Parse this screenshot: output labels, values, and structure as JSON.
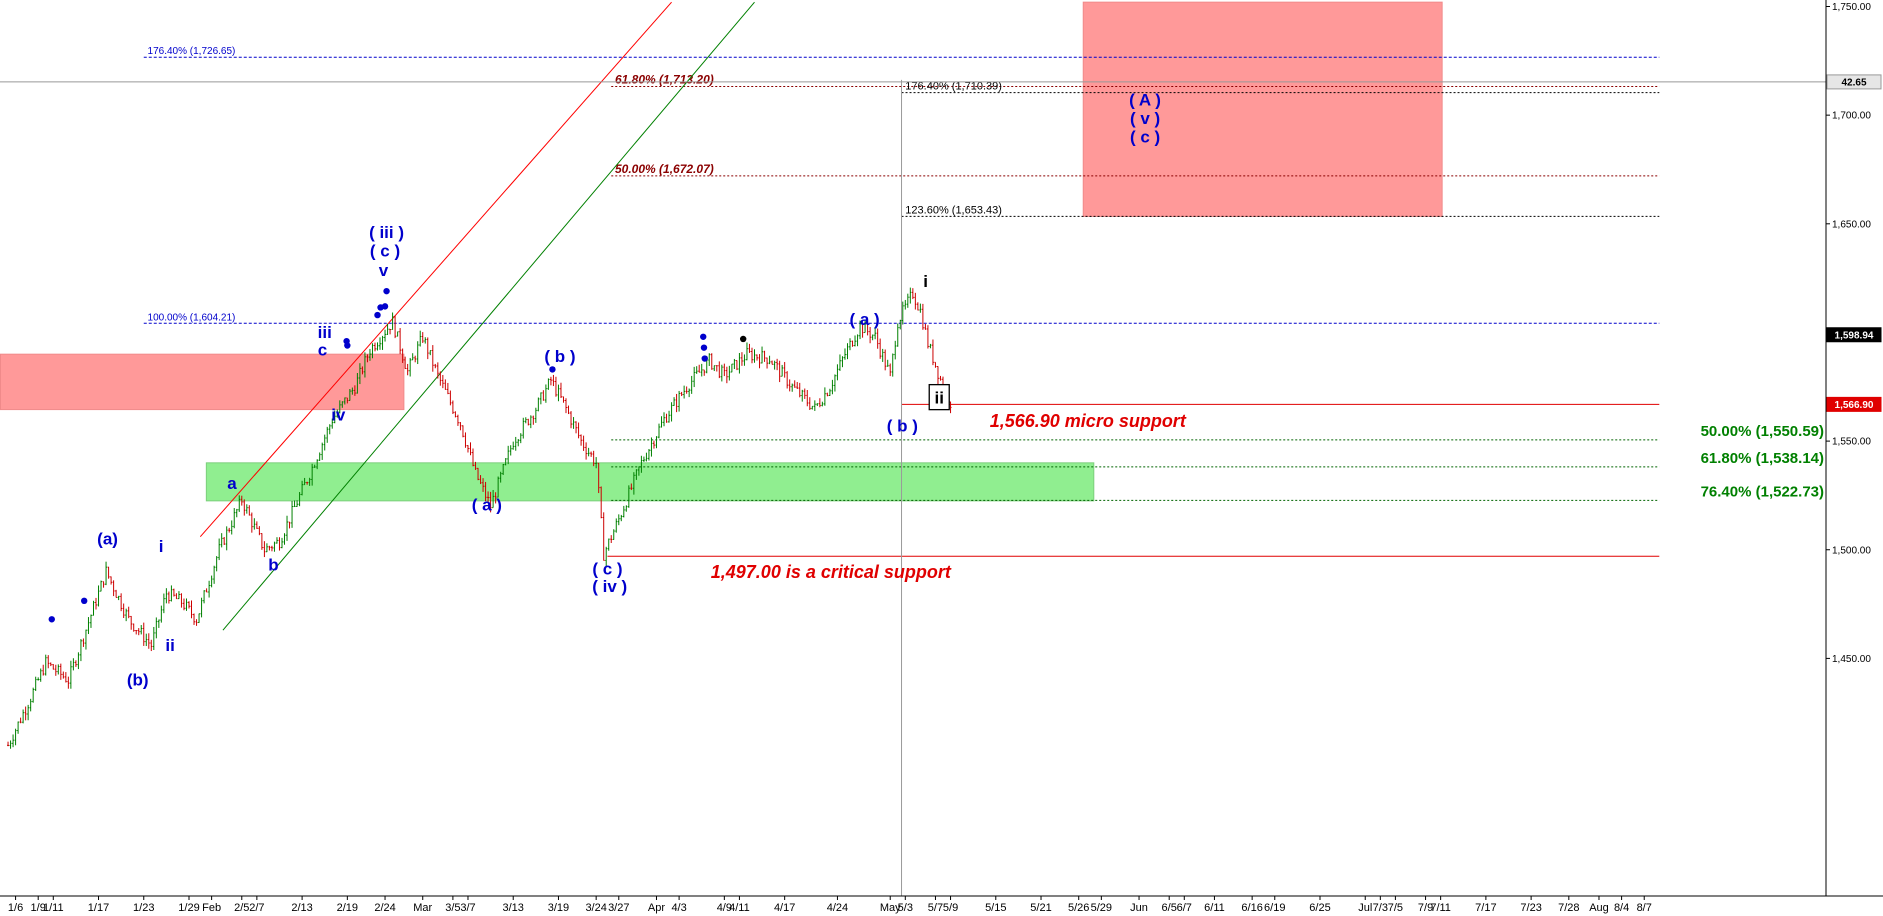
{
  "chart_data": {
    "type": "candlestick",
    "title": "",
    "xlabel": "",
    "ylabel": "",
    "ylim": [
      1407.5,
      1752
    ],
    "grid": false,
    "y_ticks": [
      1450,
      1500,
      1550,
      1600,
      1650,
      1700,
      1750
    ],
    "y_tick_labels": [
      "1,450.00",
      "1,500.00",
      "1,550.00",
      "1,600.00",
      "1,650.00",
      "1,700.00",
      "1,750.00"
    ],
    "x_tick_labels": [
      {
        "day": 2,
        "label": "1/6"
      },
      {
        "day": 5,
        "label": "1/9"
      },
      {
        "day": 7,
        "label": "1/11"
      },
      {
        "day": 13,
        "label": "1/17"
      },
      {
        "day": 19,
        "label": "1/23"
      },
      {
        "day": 25,
        "label": "1/29"
      },
      {
        "day": 28,
        "label": "Feb"
      },
      {
        "day": 32,
        "label": "2/5"
      },
      {
        "day": 34,
        "label": "2/7"
      },
      {
        "day": 40,
        "label": "2/13"
      },
      {
        "day": 46,
        "label": "2/19"
      },
      {
        "day": 51,
        "label": "2/24"
      },
      {
        "day": 56,
        "label": "Mar"
      },
      {
        "day": 60,
        "label": "3/5"
      },
      {
        "day": 62,
        "label": "3/7"
      },
      {
        "day": 68,
        "label": "3/13"
      },
      {
        "day": 74,
        "label": "3/19"
      },
      {
        "day": 79,
        "label": "3/24"
      },
      {
        "day": 82,
        "label": "3/27"
      },
      {
        "day": 87,
        "label": "Apr"
      },
      {
        "day": 90,
        "label": "4/3"
      },
      {
        "day": 96,
        "label": "4/9"
      },
      {
        "day": 98,
        "label": "4/11"
      },
      {
        "day": 104,
        "label": "4/17"
      },
      {
        "day": 111,
        "label": "4/24"
      },
      {
        "day": 118,
        "label": "May"
      },
      {
        "day": 120,
        "label": "5/3"
      },
      {
        "day": 124,
        "label": "5/7"
      },
      {
        "day": 126,
        "label": "5/9"
      },
      {
        "day": 132,
        "label": "5/15"
      },
      {
        "day": 138,
        "label": "5/21"
      },
      {
        "day": 143,
        "label": "5/26"
      },
      {
        "day": 146,
        "label": "5/29"
      },
      {
        "day": 151,
        "label": "Jun"
      },
      {
        "day": 155,
        "label": "6/5"
      },
      {
        "day": 157,
        "label": "6/7"
      },
      {
        "day": 161,
        "label": "6/11"
      },
      {
        "day": 166,
        "label": "6/16"
      },
      {
        "day": 169,
        "label": "6/19"
      },
      {
        "day": 175,
        "label": "6/25"
      },
      {
        "day": 181,
        "label": "Jul"
      },
      {
        "day": 183,
        "label": "7/3"
      },
      {
        "day": 185,
        "label": "7/5"
      },
      {
        "day": 189,
        "label": "7/9"
      },
      {
        "day": 191,
        "label": "7/11"
      },
      {
        "day": 197,
        "label": "7/17"
      },
      {
        "day": 203,
        "label": "7/23"
      },
      {
        "day": 208,
        "label": "7/28"
      },
      {
        "day": 212,
        "label": "Aug"
      },
      {
        "day": 215,
        "label": "8/4"
      },
      {
        "day": 218,
        "label": "8/7"
      }
    ],
    "price_path": [
      [
        1,
        1410
      ],
      [
        4,
        1432
      ],
      [
        6,
        1448
      ],
      [
        9,
        1440
      ],
      [
        12,
        1470
      ],
      [
        14,
        1490
      ],
      [
        17,
        1468
      ],
      [
        20,
        1456
      ],
      [
        22,
        1480
      ],
      [
        24,
        1476
      ],
      [
        26,
        1468
      ],
      [
        29,
        1500
      ],
      [
        32,
        1523
      ],
      [
        35,
        1500
      ],
      [
        37,
        1504
      ],
      [
        41,
        1535
      ],
      [
        44,
        1560
      ],
      [
        47,
        1575
      ],
      [
        49,
        1592
      ],
      [
        52,
        1605
      ],
      [
        54,
        1582
      ],
      [
        56,
        1598
      ],
      [
        58,
        1580
      ],
      [
        61,
        1558
      ],
      [
        63,
        1535
      ],
      [
        65,
        1520
      ],
      [
        68,
        1550
      ],
      [
        71,
        1565
      ],
      [
        73,
        1578
      ],
      [
        75,
        1565
      ],
      [
        77,
        1550
      ],
      [
        79,
        1540
      ],
      [
        80,
        1498
      ],
      [
        82,
        1514
      ],
      [
        85,
        1540
      ],
      [
        88,
        1560
      ],
      [
        91,
        1575
      ],
      [
        94,
        1587
      ],
      [
        96,
        1580
      ],
      [
        99,
        1590
      ],
      [
        102,
        1588
      ],
      [
        105,
        1575
      ],
      [
        108,
        1565
      ],
      [
        110,
        1575
      ],
      [
        112,
        1590
      ],
      [
        114,
        1603
      ],
      [
        116,
        1598
      ],
      [
        118,
        1580
      ],
      [
        119,
        1605
      ],
      [
        121,
        1618
      ],
      [
        122,
        1610
      ],
      [
        123,
        1595
      ],
      [
        124,
        1585
      ],
      [
        125,
        1575
      ],
      [
        126,
        1568
      ]
    ],
    "zones": [
      {
        "color": "#ff9999",
        "day_start": 0,
        "day_end": 53.5,
        "price_top": 1590,
        "price_bottom": 1564.5
      },
      {
        "color": "#90ee90",
        "day_start": 27.3,
        "day_end": 145,
        "price_top": 1540,
        "price_bottom": 1522.5
      },
      {
        "color": "#ff9999",
        "day_start": 143.6,
        "day_end": 191.2,
        "price_top": 1752,
        "price_bottom": 1653.4
      }
    ],
    "trend_lines": [
      {
        "color": "#ff0000",
        "from": [
          26.5,
          1506
        ],
        "to": [
          89,
          1752
        ]
      },
      {
        "color": "#008000",
        "from": [
          29.5,
          1463
        ],
        "to": [
          100,
          1752
        ]
      }
    ],
    "levels": [
      {
        "name": "level-176-40-top",
        "price": 1726.65,
        "label": "176.40% (1,726.65)",
        "color": "#0000cc",
        "style": "dash",
        "day_start": 19,
        "day_end": 220,
        "label_day": 19.5,
        "size": 10,
        "bold": false,
        "italic": false
      },
      {
        "name": "level-61-80-upper",
        "price": 1713.2,
        "label": "61.80% (1,713.20)",
        "color": "#8b0000",
        "style": "dot",
        "day_start": 81,
        "day_end": 220,
        "label_day": 81.5,
        "size": 12,
        "bold": true,
        "italic": true
      },
      {
        "name": "level-176-40-mid",
        "price": 1710.39,
        "label": "176.40% (1,710.39)",
        "color": "#000000",
        "style": "dot",
        "day_start": 119.5,
        "day_end": 220,
        "label_day": 120,
        "size": 11,
        "bold": false,
        "italic": false
      },
      {
        "name": "level-50-00-upper",
        "price": 1672.07,
        "label": "50.00% (1,672.07)",
        "color": "#8b0000",
        "style": "dot",
        "day_start": 81,
        "day_end": 220,
        "label_day": 81.5,
        "size": 12,
        "bold": true,
        "italic": true
      },
      {
        "name": "level-123-60",
        "price": 1653.43,
        "label": "123.60% (1,653.43)",
        "color": "#000000",
        "style": "dot",
        "day_start": 119.5,
        "day_end": 220,
        "label_day": 120,
        "size": 11,
        "bold": false,
        "italic": false
      },
      {
        "name": "level-100-00",
        "price": 1604.21,
        "label": "100.00% (1,604.21)",
        "color": "#0000cc",
        "style": "dash",
        "day_start": 19,
        "day_end": 220,
        "label_day": 19.5,
        "size": 10,
        "bold": false,
        "italic": false
      },
      {
        "name": "level-50-00-lower",
        "price": 1550.59,
        "label": "",
        "color": "#006400",
        "style": "dot",
        "day_start": 81,
        "day_end": 220,
        "label_day": 0,
        "size": 0,
        "bold": false,
        "italic": false
      },
      {
        "name": "level-61-80-lower",
        "price": 1538.14,
        "label": "",
        "color": "#006400",
        "style": "dot",
        "day_start": 81,
        "day_end": 220,
        "label_day": 0,
        "size": 0,
        "bold": false,
        "italic": false
      },
      {
        "name": "level-76-40",
        "price": 1522.73,
        "label": "",
        "color": "#006400",
        "style": "dot",
        "day_start": 81,
        "day_end": 220,
        "label_day": 0,
        "size": 0,
        "bold": false,
        "italic": false
      },
      {
        "name": "level-micro-support",
        "price": 1566.9,
        "label": "",
        "color": "#e00000",
        "style": "solid",
        "day_start": 119.5,
        "day_end": 220,
        "label_day": 0,
        "size": 0,
        "bold": false,
        "italic": false
      },
      {
        "name": "level-critical-support",
        "price": 1497,
        "label": "",
        "color": "#e00000",
        "style": "solid",
        "day_start": 80.5,
        "day_end": 220,
        "label_day": 0,
        "size": 0,
        "bold": false,
        "italic": false
      }
    ],
    "crosshair": {
      "day": 119.5,
      "price": 1715.3
    },
    "price_tags": [
      {
        "name": "price-tag-crosshair",
        "price": 1715.3,
        "label": "42.65",
        "bg": "#e6e6e6",
        "fg": "#000000"
      },
      {
        "name": "price-tag-last",
        "price": 1598.94,
        "label": "1,598.94",
        "bg": "#000000",
        "fg": "#ffffff"
      },
      {
        "name": "price-tag-support",
        "price": 1566.9,
        "label": "1,566.90",
        "bg": "#e00000",
        "fg": "#ffffff"
      }
    ],
    "support_labels": [
      {
        "name": "micro-support-label",
        "text": "1,566.90 micro support",
        "day": 131.2,
        "price": 1556.5
      },
      {
        "name": "critical-support-label",
        "text": "1,497.00 is a critical support",
        "day": 94.2,
        "price": 1487
      }
    ],
    "fib_right_labels": [
      {
        "name": "fib-50-00-label",
        "text": "50.00% (1,550.59)",
        "price": 1550.59
      },
      {
        "name": "fib-61-80-label",
        "text": "61.80% (1,538.14)",
        "price": 1538.14
      },
      {
        "name": "fib-76-40-label",
        "text": "76.40% (1,522.73)",
        "price": 1522.73
      }
    ],
    "wave_labels": [
      {
        "text": "(a)",
        "day": 14.2,
        "price": 1502.5,
        "color": "#0000cc"
      },
      {
        "text": "(b)",
        "day": 18.2,
        "price": 1437.5,
        "color": "#0000cc"
      },
      {
        "text": "i",
        "day": 21.3,
        "price": 1499,
        "color": "#0000cc"
      },
      {
        "text": "ii",
        "day": 22.5,
        "price": 1453.5,
        "color": "#0000cc"
      },
      {
        "text": "a",
        "day": 30.7,
        "price": 1528,
        "color": "#0000cc"
      },
      {
        "text": "b",
        "day": 36.2,
        "price": 1490.5,
        "color": "#0000cc"
      },
      {
        "text": "iii",
        "day": 43,
        "price": 1597.5,
        "color": "#0000cc"
      },
      {
        "text": "c",
        "day": 42.7,
        "price": 1589.5,
        "color": "#0000cc"
      },
      {
        "text": "iv",
        "day": 44.8,
        "price": 1559.5,
        "color": "#0000cc"
      },
      {
        "text": "( iii )",
        "day": 51.2,
        "price": 1643.5,
        "color": "#0000cc"
      },
      {
        "text": "( c )",
        "day": 51,
        "price": 1635,
        "color": "#0000cc"
      },
      {
        "text": "v",
        "day": 50.8,
        "price": 1626,
        "color": "#0000cc"
      },
      {
        "text": "( a )",
        "day": 64.5,
        "price": 1518,
        "color": "#0000cc"
      },
      {
        "text": "( b )",
        "day": 74.2,
        "price": 1586.5,
        "color": "#0000cc"
      },
      {
        "text": "( c )",
        "day": 80.5,
        "price": 1488.5,
        "color": "#0000cc"
      },
      {
        "text": "( iv )",
        "day": 80.8,
        "price": 1480.5,
        "color": "#0000cc"
      },
      {
        "text": "( a )",
        "day": 114.6,
        "price": 1603.5,
        "color": "#0000cc"
      },
      {
        "text": "( b )",
        "day": 119.6,
        "price": 1554.5,
        "color": "#0000cc"
      },
      {
        "text": "( A )",
        "day": 151.8,
        "price": 1704.5,
        "color": "#0000cc"
      },
      {
        "text": "( v )",
        "day": 151.8,
        "price": 1696,
        "color": "#0000cc"
      },
      {
        "text": "( c )",
        "day": 151.8,
        "price": 1687.5,
        "color": "#0000cc"
      },
      {
        "text": "i",
        "day": 122.7,
        "price": 1621,
        "color": "#000000"
      }
    ],
    "boxed_label": {
      "text": "ii",
      "day": 124.5,
      "price": 1570
    },
    "dots": [
      {
        "day": 6.8,
        "price": 1468,
        "color": "#0000cc"
      },
      {
        "day": 11.1,
        "price": 1476.5,
        "color": "#0000cc"
      },
      {
        "day": 45.9,
        "price": 1596,
        "color": "#0000cc"
      },
      {
        "day": 46,
        "price": 1594,
        "color": "#0000cc"
      },
      {
        "day": 50,
        "price": 1608,
        "color": "#0000cc"
      },
      {
        "day": 50.4,
        "price": 1611.5,
        "color": "#0000cc"
      },
      {
        "day": 51,
        "price": 1612,
        "color": "#0000cc"
      },
      {
        "day": 51.2,
        "price": 1619,
        "color": "#0000cc"
      },
      {
        "day": 73.2,
        "price": 1583,
        "color": "#0000cc"
      },
      {
        "day": 93.2,
        "price": 1598,
        "color": "#0000cc"
      },
      {
        "day": 93.3,
        "price": 1593,
        "color": "#0000cc"
      },
      {
        "day": 93.4,
        "price": 1588,
        "color": "#0000cc"
      },
      {
        "day": 98.5,
        "price": 1597,
        "color": "#000000"
      }
    ]
  }
}
